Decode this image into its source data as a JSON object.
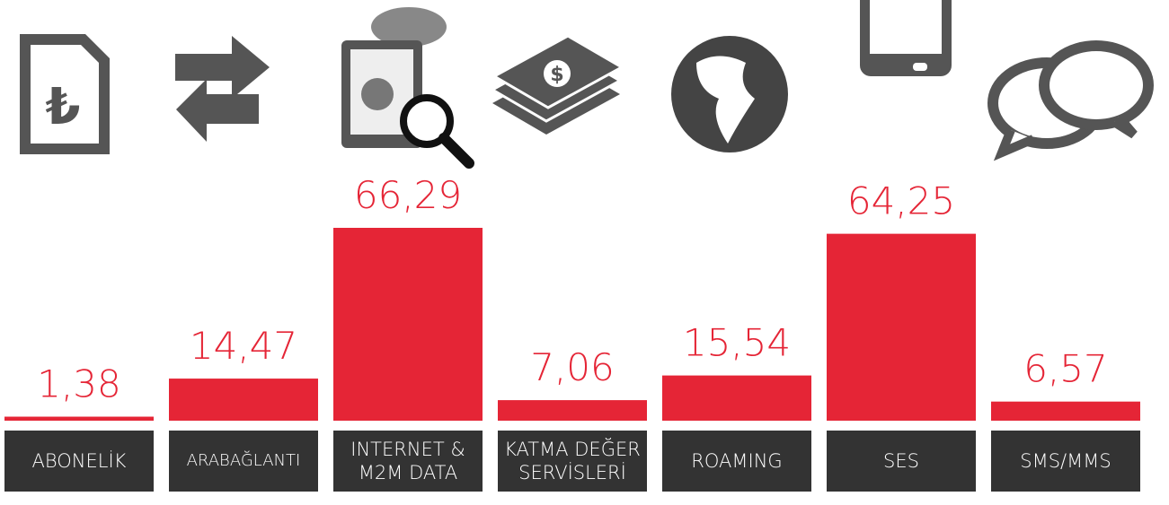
{
  "chart_data": {
    "type": "bar",
    "categories": [
      "ABONELİK",
      "ARABAĞLANTI",
      "INTERNET & M2M DATA",
      "KATMA DEĞER SERVİSLERİ",
      "ROAMING",
      "SES",
      "SMS/MMS"
    ],
    "values": [
      1.38,
      14.47,
      66.29,
      7.06,
      15.54,
      64.25,
      6.57
    ],
    "value_labels": [
      "1,38",
      "14,47",
      "66,29",
      "7,06",
      "15,54",
      "64,25",
      "6,57"
    ],
    "color": "#e52536"
  }
}
